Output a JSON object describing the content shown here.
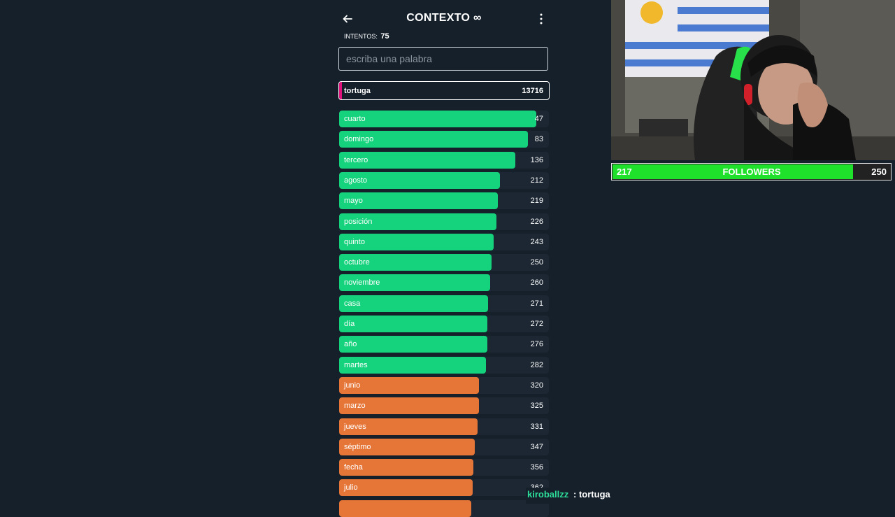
{
  "header": {
    "title": "CONTEXTO",
    "infinity_symbol": "∞"
  },
  "attempts": {
    "label": "INTENTOS:",
    "count": "75"
  },
  "search": {
    "placeholder": "escriba una palabra",
    "value": ""
  },
  "last_guess": {
    "word": "tortuga",
    "rank": "13716",
    "accent_color": "#e0127c"
  },
  "colors": {
    "green": "#15d27c",
    "orange": "#e67638",
    "row_bg": "#1c2733",
    "followers_fill": "#1fe12b"
  },
  "guesses": [
    {
      "word": "cuarto",
      "rank": "47",
      "color": "green",
      "fill": 0.94
    },
    {
      "word": "domingo",
      "rank": "83",
      "color": "green",
      "fill": 0.9
    },
    {
      "word": "tercero",
      "rank": "136",
      "color": "green",
      "fill": 0.84
    },
    {
      "word": "agosto",
      "rank": "212",
      "color": "green",
      "fill": 0.765
    },
    {
      "word": "mayo",
      "rank": "219",
      "color": "green",
      "fill": 0.757
    },
    {
      "word": "posición",
      "rank": "226",
      "color": "green",
      "fill": 0.75
    },
    {
      "word": "quinto",
      "rank": "243",
      "color": "green",
      "fill": 0.735
    },
    {
      "word": "octubre",
      "rank": "250",
      "color": "green",
      "fill": 0.727
    },
    {
      "word": "noviembre",
      "rank": "260",
      "color": "green",
      "fill": 0.72
    },
    {
      "word": "casa",
      "rank": "271",
      "color": "green",
      "fill": 0.71
    },
    {
      "word": "día",
      "rank": "272",
      "color": "green",
      "fill": 0.708
    },
    {
      "word": "año",
      "rank": "276",
      "color": "green",
      "fill": 0.705
    },
    {
      "word": "martes",
      "rank": "282",
      "color": "green",
      "fill": 0.7
    },
    {
      "word": "junio",
      "rank": "320",
      "color": "orange",
      "fill": 0.668
    },
    {
      "word": "marzo",
      "rank": "325",
      "color": "orange",
      "fill": 0.665
    },
    {
      "word": "jueves",
      "rank": "331",
      "color": "orange",
      "fill": 0.66
    },
    {
      "word": "séptimo",
      "rank": "347",
      "color": "orange",
      "fill": 0.647
    },
    {
      "word": "fecha",
      "rank": "356",
      "color": "orange",
      "fill": 0.64
    },
    {
      "word": "julio",
      "rank": "362",
      "color": "orange",
      "fill": 0.637
    },
    {
      "word": "",
      "rank": "",
      "color": "orange",
      "fill": 0.63
    }
  ],
  "followers": {
    "current": "217",
    "label": "FOLLOWERS",
    "goal": "250",
    "progress": 0.868
  },
  "chat": {
    "username": "kiroballzz",
    "separator": ":",
    "message": "tortuga"
  }
}
